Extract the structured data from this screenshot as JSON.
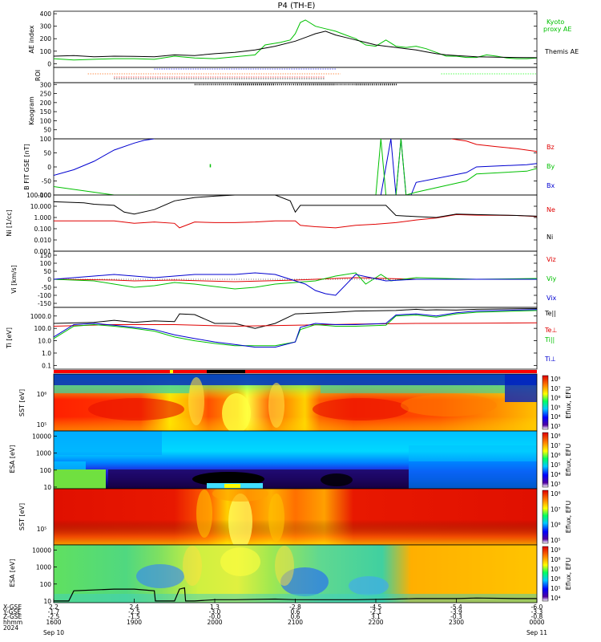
{
  "title": "P4 (TH-E)",
  "colors": {
    "kyoto": "#00c000",
    "themis": "#000000",
    "red": "#e00000",
    "green": "#00c000",
    "blue": "#0000d0",
    "dot_blue": "#0000ff",
    "dot_green": "#00ff00",
    "dot_orange": "#ff6000",
    "dot_red": "#ff0000"
  },
  "chart_data": [
    {
      "name": "ae",
      "type": "line",
      "ylabel": "AE index",
      "yticks": [
        "400",
        "300",
        "200",
        "100",
        "0"
      ],
      "ylim": [
        -30,
        420
      ],
      "series": [
        {
          "name": "Kyoto proxy AE",
          "color": "#00c000",
          "x": [
            1600,
            1620,
            1640,
            1700,
            1720,
            1740,
            1800,
            1820,
            1840,
            1900,
            1920,
            1930,
            1945,
            1955,
            2000,
            2005,
            2010,
            2020,
            2030,
            2040,
            2050,
            2100,
            2110,
            2120,
            2130,
            2140,
            2150,
            2200,
            2210,
            2220,
            2230,
            2240,
            2250,
            2300,
            2310,
            2320,
            2330,
            2340,
            2350,
            2400
          ],
          "y": [
            40,
            30,
            35,
            40,
            40,
            35,
            60,
            45,
            40,
            55,
            70,
            150,
            170,
            190,
            240,
            330,
            350,
            300,
            280,
            260,
            230,
            200,
            150,
            140,
            190,
            140,
            130,
            140,
            120,
            90,
            60,
            60,
            50,
            50,
            70,
            60,
            45,
            40,
            40,
            45
          ]
        },
        {
          "name": "Themis AE",
          "color": "#000000",
          "x": [
            1600,
            1620,
            1640,
            1700,
            1720,
            1740,
            1800,
            1820,
            1840,
            1900,
            1920,
            1940,
            2000,
            2010,
            2020,
            2030,
            2040,
            2050,
            2100,
            2110,
            2120,
            2130,
            2140,
            2150,
            2200,
            2210,
            2220,
            2230,
            2240,
            2250,
            2300,
            2320,
            2340,
            2400
          ],
          "y": [
            60,
            65,
            55,
            60,
            58,
            55,
            70,
            65,
            80,
            90,
            110,
            140,
            180,
            210,
            240,
            260,
            230,
            210,
            190,
            170,
            150,
            140,
            130,
            120,
            110,
            95,
            80,
            70,
            65,
            60,
            55,
            52,
            50,
            48
          ]
        }
      ]
    },
    {
      "name": "roi",
      "type": "scatter",
      "ylabel": "ROI",
      "rows": [
        {
          "color": "#0000ff",
          "x_ranges": [
            [
              1740,
              2040
            ]
          ]
        },
        {
          "color": "#ff6000",
          "x_ranges": [
            [
              1634,
              2045
            ]
          ]
        },
        {
          "color": "#ff0000",
          "x_ranges": [
            [
              1700,
              2030
            ]
          ]
        },
        {
          "color": "#00ff00",
          "x_ranges": [
            [
              2225,
              2400
            ]
          ]
        }
      ]
    },
    {
      "name": "keogram",
      "type": "line",
      "ylabel": "Keogram",
      "yticks": [
        "300",
        "250",
        "200",
        "150",
        "100",
        "50"
      ],
      "ylim": [
        0,
        310
      ],
      "series": [
        {
          "color": "#000000",
          "x": [
            1820,
            1900,
            2000,
            2100,
            2140
          ],
          "y": [
            300,
            300,
            300,
            300,
            300
          ]
        }
      ]
    },
    {
      "name": "bfield",
      "type": "line",
      "ylabel": "B FIT GSE [nT]",
      "yticks": [
        "100",
        "50",
        "0",
        "-50",
        "-100"
      ],
      "ylim": [
        -100,
        100
      ],
      "series": [
        {
          "name": "Bz",
          "color": "#e00000",
          "x": [
            2235,
            2250,
            2300,
            2320,
            2340,
            2360,
            2400
          ],
          "y": [
            100,
            92,
            80,
            72,
            65,
            55,
            45
          ]
        },
        {
          "name": "By",
          "color": "#00c000",
          "x": [
            1600,
            1620,
            1640,
            1700,
            1710,
            1720,
            1725
          ],
          "y": [
            -70,
            -80,
            -90,
            -100,
            -100,
            -100,
            -100
          ]
        },
        {
          "name": "Bx",
          "color": "#0000d0",
          "x": [
            1600,
            1620,
            1640,
            1700,
            1720,
            1730,
            1740
          ],
          "y": [
            -30,
            -10,
            20,
            60,
            85,
            95,
            100
          ]
        }
      ],
      "segments": [
        {
          "name": "Bx",
          "color": "#0000d0",
          "x": [
            2125,
            2135,
            2140,
            2145,
            2150,
            2155,
            2200,
            2250,
            2300,
            2350,
            2400
          ],
          "y": [
            -100,
            100,
            -100,
            100,
            -100,
            -100,
            -55,
            -20,
            0,
            8,
            12
          ]
        },
        {
          "name": "By",
          "color": "#00c000",
          "x": [
            2120,
            2125,
            2130,
            2140,
            2145,
            2150,
            2200,
            2250,
            2300,
            2350,
            2400
          ],
          "y": [
            -100,
            100,
            -100,
            -100,
            100,
            -100,
            -90,
            -50,
            -25,
            -15,
            -5
          ]
        }
      ]
    },
    {
      "name": "density",
      "type": "line",
      "ylabel": "Ni [1/cc]",
      "yticks": [
        "100.000",
        "10.000",
        "1.000",
        "0.100",
        "0.010",
        "0.001"
      ],
      "ylog": true,
      "ylim": [
        0.001,
        100
      ],
      "series": [
        {
          "name": "Ne",
          "color": "#e00000",
          "x": [
            1600,
            1640,
            1700,
            1720,
            1740,
            1800,
            1805,
            1820,
            1840,
            1900,
            1920,
            1940,
            2000,
            2005,
            2020,
            2040,
            2100,
            2120,
            2140,
            2200,
            2220,
            2240,
            2300,
            2340,
            2400
          ],
          "y": [
            0.5,
            0.5,
            0.5,
            0.3,
            0.4,
            0.3,
            0.12,
            0.4,
            0.35,
            0.35,
            0.4,
            0.5,
            0.5,
            0.2,
            0.15,
            0.12,
            0.2,
            0.25,
            0.35,
            0.6,
            0.9,
            1.8,
            1.6,
            1.5,
            1.2
          ]
        },
        {
          "name": "Ni",
          "color": "#000000",
          "x": [
            1600,
            1630,
            1640,
            1700,
            1710,
            1720,
            1740,
            1800,
            1820,
            1840,
            1900,
            1930,
            1940,
            1955,
            2000,
            2005,
            2040,
            2100,
            2130,
            2140,
            2200,
            2220,
            2240,
            2300,
            2340,
            2400
          ],
          "y": [
            25,
            20,
            15,
            12,
            3,
            2,
            5,
            30,
            60,
            80,
            100,
            100,
            100,
            30,
            3,
            12,
            12,
            12,
            12,
            1.5,
            1.2,
            1.0,
            2.0,
            1.8,
            1.5,
            1.3
          ]
        }
      ]
    },
    {
      "name": "velocity",
      "type": "line",
      "ylabel": "Vi [km/s]",
      "yticks": [
        "150",
        "100",
        "50",
        "0",
        "-50",
        "-100",
        "-150"
      ],
      "ylim": [
        -175,
        175
      ],
      "series": [
        {
          "name": "Viz",
          "color": "#e00000",
          "x": [
            1600,
            1700,
            1720,
            1800,
            1900,
            2000,
            2100,
            2200,
            2300,
            2400
          ],
          "y": [
            0,
            -5,
            -10,
            -5,
            -15,
            -5,
            10,
            0,
            0,
            0
          ]
        },
        {
          "name": "Viy",
          "color": "#00c000",
          "x": [
            1600,
            1640,
            1700,
            1720,
            1740,
            1800,
            1820,
            1900,
            1920,
            1940,
            2000,
            2020,
            2040,
            2100,
            2110,
            2125,
            2135,
            2200,
            2300,
            2400
          ],
          "y": [
            0,
            -10,
            -30,
            -50,
            -40,
            -20,
            -30,
            -60,
            -50,
            -30,
            -20,
            -10,
            20,
            40,
            -30,
            30,
            -10,
            10,
            0,
            5
          ]
        },
        {
          "name": "Vix",
          "color": "#0000d0",
          "x": [
            1600,
            1640,
            1700,
            1720,
            1740,
            1800,
            1820,
            1900,
            1920,
            1940,
            2000,
            2010,
            2020,
            2030,
            2040,
            2100,
            2130,
            2200,
            2300,
            2400
          ],
          "y": [
            0,
            20,
            30,
            20,
            10,
            20,
            30,
            30,
            40,
            30,
            -10,
            -30,
            -70,
            -90,
            -100,
            30,
            -10,
            0,
            0,
            0
          ]
        }
      ]
    },
    {
      "name": "temperature",
      "type": "line",
      "ylabel": "Ti [eV]",
      "yticks": [
        "1000.0",
        "100.0",
        "10.0",
        "1.0",
        "0.1"
      ],
      "ylog": true,
      "ylim": [
        0.05,
        5000
      ],
      "series": [
        {
          "name": "Te||",
          "color": "#000000",
          "x": [
            1600,
            1640,
            1700,
            1720,
            1740,
            1800,
            1805,
            1820,
            1840,
            1900,
            1920,
            1940,
            2000,
            2040,
            2100,
            2140,
            2200,
            2210,
            2220,
            2240,
            2300,
            2340,
            2400
          ],
          "y": [
            250,
            300,
            450,
            300,
            400,
            350,
            1500,
            1300,
            250,
            250,
            100,
            250,
            1500,
            2000,
            2500,
            2800,
            3500,
            3000,
            3200,
            3000,
            3500,
            3800,
            4000
          ]
        },
        {
          "name": "Te⊥",
          "color": "#e00000",
          "x": [
            1600,
            1700,
            1800,
            1900,
            2000,
            2100,
            2200,
            2300,
            2400
          ],
          "y": [
            150,
            200,
            200,
            150,
            180,
            220,
            250,
            260,
            280
          ]
        },
        {
          "name": "Ti||",
          "color": "#00c000",
          "x": [
            1600,
            1620,
            1640,
            1700,
            1720,
            1740,
            1800,
            1820,
            1840,
            1900,
            1920,
            1940,
            2000,
            2005,
            2020,
            2040,
            2100,
            2130,
            2140,
            2200,
            2220,
            2240,
            2300,
            2340,
            2400
          ],
          "y": [
            15,
            150,
            200,
            150,
            100,
            60,
            20,
            10,
            6,
            4,
            4,
            4,
            8,
            80,
            200,
            150,
            150,
            180,
            1000,
            1200,
            800,
            1500,
            2000,
            2500,
            2800
          ]
        },
        {
          "name": "Ti⊥",
          "color": "#0000d0",
          "x": [
            1600,
            1620,
            1640,
            1700,
            1720,
            1740,
            1800,
            1820,
            1840,
            1900,
            1920,
            1940,
            2000,
            2005,
            2020,
            2040,
            2100,
            2130,
            2140,
            2200,
            2220,
            2240,
            2300,
            2340,
            2400
          ],
          "y": [
            20,
            200,
            250,
            180,
            120,
            80,
            30,
            15,
            8,
            5,
            3,
            3,
            8,
            120,
            250,
            200,
            200,
            250,
            1200,
            1500,
            1000,
            1800,
            2500,
            3000,
            3300
          ]
        }
      ]
    },
    {
      "name": "sst_ion",
      "type": "heatmap",
      "ylabel": "SST [eV]",
      "yticks": [
        "10⁶",
        "10⁵"
      ],
      "cbar_label": "Eflux, EFU",
      "cbar_ticks": [
        "10⁸",
        "10⁷",
        "10⁶",
        "10⁵",
        "10⁴",
        "10³"
      ]
    },
    {
      "name": "esa_ion",
      "type": "heatmap",
      "ylabel": "ESA [eV]",
      "yticks": [
        "10000",
        "1000",
        "100",
        "10"
      ],
      "cbar_label": "Eflux, EFU",
      "cbar_ticks": [
        "10⁸",
        "10⁷",
        "10⁶",
        "10⁵",
        "10⁴",
        "10³"
      ]
    },
    {
      "name": "sst_elec",
      "type": "heatmap",
      "ylabel": "SST [eV]",
      "yticks": [
        "10⁵"
      ],
      "cbar_label": "Eflux, EFU",
      "cbar_ticks": [
        "10⁸",
        "10⁷",
        "10⁶",
        "10⁵"
      ]
    },
    {
      "name": "esa_elec",
      "type": "heatmap",
      "ylabel": "ESA [eV]",
      "yticks": [
        "10000",
        "1000",
        "100",
        "10"
      ],
      "cbar_label": "Eflux, EFU",
      "cbar_ticks": [
        "10⁹",
        "10⁸",
        "10⁷",
        "10⁶",
        "10⁵",
        "10⁴"
      ],
      "series": [
        {
          "color": "#000000",
          "x": [
            1600,
            1615,
            1620,
            1700,
            1720,
            1740,
            1741,
            1800,
            1805,
            1810,
            1811,
            1820,
            1840,
            1900,
            1940,
            2000,
            2040,
            2100,
            2140,
            2200,
            2240,
            2300,
            2340,
            2400
          ],
          "y": [
            10,
            10,
            40,
            50,
            50,
            40,
            10,
            10,
            50,
            60,
            10,
            10,
            12,
            12,
            13,
            12,
            12,
            12,
            13,
            14,
            14,
            15,
            14,
            14
          ]
        }
      ]
    }
  ],
  "legend": {
    "ae": [
      "Kyoto",
      "proxy AE",
      "Themis AE"
    ],
    "bfield": [
      "Bz",
      "By",
      "Bx"
    ],
    "density": [
      "Ne",
      "Ni"
    ],
    "velocity": [
      "Viz",
      "Viy",
      "Vix"
    ],
    "temperature": [
      "Te||",
      "Te⊥",
      "Ti||",
      "Ti⊥"
    ]
  },
  "xaxis": {
    "row_labels": [
      "X-GSE",
      "Y-GSE",
      "Z-GSE",
      "hhmm",
      "2024"
    ],
    "ticks": [
      {
        "xgse": "2.2",
        "ygse": "-1.7",
        "zgse": "-2.5",
        "hhmm": "1600",
        "date": "Sep 10"
      },
      {
        "xgse": "2.4",
        "ygse": "-2.5",
        "zgse": "-1.5",
        "hhmm": "1900",
        "date": ""
      },
      {
        "xgse": "1.3",
        "ygse": "-3.0",
        "zgse": "-0.0",
        "hhmm": "2000",
        "date": ""
      },
      {
        "xgse": "-2.8",
        "ygse": "0.6",
        "zgse": "0.6",
        "hhmm": "2100",
        "date": ""
      },
      {
        "xgse": "-4.5",
        "ygse": "-2.1",
        "zgse": "3.1",
        "hhmm": "2200",
        "date": ""
      },
      {
        "xgse": "-5.4",
        "ygse": "-3.9",
        "zgse": "-0.3",
        "hhmm": "2300",
        "date": ""
      },
      {
        "xgse": "-6.0",
        "ygse": "-3.3",
        "zgse": "-0.8",
        "hhmm": "0000",
        "date": "Sep 11"
      }
    ]
  }
}
